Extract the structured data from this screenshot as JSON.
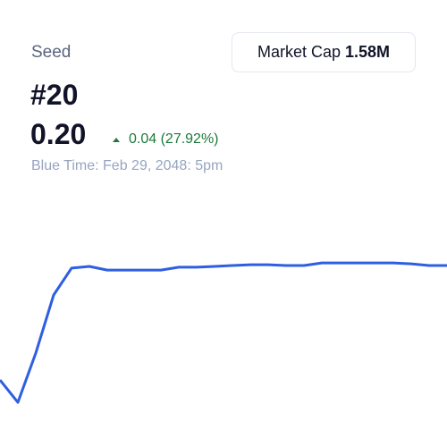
{
  "header": {
    "label": "Seed",
    "rank": "#20",
    "price": "0.20",
    "change": "0.04 (27.92%)",
    "timestamp": "Blue Time: Feb 29, 2048: 5pm"
  },
  "market_cap": {
    "label": "Market Cap",
    "value": "1.58M"
  },
  "chart_data": {
    "type": "line",
    "color": "#2f5fe0",
    "values": [
      0.16,
      0.1522,
      0.1694,
      0.1897,
      0.1991,
      0.1997,
      0.1984,
      0.1984,
      0.1984,
      0.1984,
      0.1994,
      0.1994,
      0.1997,
      0.2,
      0.2003,
      0.2003,
      0.2,
      0.2,
      0.2009,
      0.2009,
      0.2009,
      0.2009,
      0.2009,
      0.2006,
      0.2,
      0.2
    ],
    "ylim": [
      0.1366,
      0.2303
    ]
  }
}
